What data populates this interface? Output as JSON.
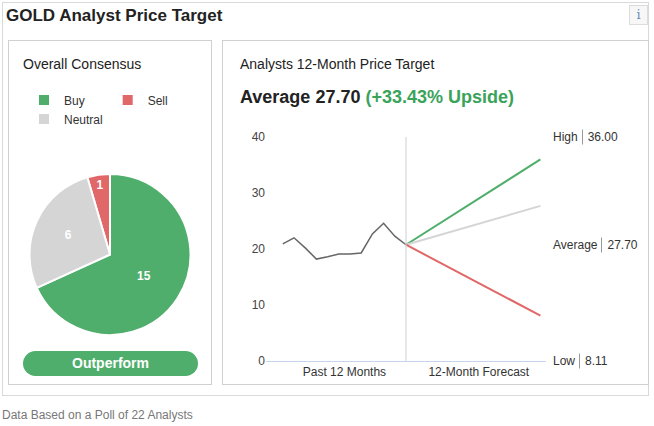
{
  "header": {
    "title": "GOLD Analyst Price Target",
    "info": "i"
  },
  "footer": "Data Based on a Poll of 22 Analysts",
  "chart_data": [
    {
      "type": "pie",
      "title": "Overall Consensus",
      "categories": [
        "Buy",
        "Sell",
        "Neutral"
      ],
      "values": [
        15,
        1,
        6
      ],
      "colors": [
        "#4fae6b",
        "#e06868",
        "#d5d5d5"
      ],
      "data_labels": true,
      "legend": "top left",
      "consensus": "Outperform"
    },
    {
      "type": "line",
      "title": "Analysts 12-Month Price Target",
      "headline": {
        "text": "Average 27.70",
        "upside": "(+33.43% Upside)"
      },
      "xlim": [
        -12.5,
        12.5
      ],
      "xticks": [
        {
          "value": -5.5,
          "label": "Past 12 Months"
        },
        {
          "value": 6.5,
          "label": "12-Month Forecast"
        }
      ],
      "ylim": [
        0,
        40
      ],
      "yticks": [
        0,
        10,
        20,
        30,
        40
      ],
      "grid": false,
      "series": [
        {
          "color": "#666666",
          "x": [
            -11,
            -10,
            -9,
            -8,
            -7,
            -6,
            -5,
            -4,
            -3,
            -2,
            -1,
            0
          ],
          "values": [
            20.9,
            22.0,
            20.2,
            18.2,
            18.6,
            19.1,
            19.1,
            19.3,
            22.7,
            24.6,
            22.3,
            20.76
          ]
        },
        {
          "name": "High",
          "color": "#4fae6b",
          "x": [
            0,
            12
          ],
          "values": [
            20.76,
            36
          ],
          "value_labels": [
            null,
            "36.00"
          ]
        },
        {
          "name": "Average",
          "color": "#d5d5d5",
          "x": [
            0,
            12
          ],
          "values": [
            20.76,
            27.7
          ],
          "value_labels": [
            null,
            "27.70"
          ]
        },
        {
          "name": "Low",
          "color": "#e06868",
          "x": [
            0,
            12
          ],
          "values": [
            20.76,
            8.11
          ],
          "value_labels": [
            null,
            "8.11"
          ]
        }
      ]
    }
  ]
}
